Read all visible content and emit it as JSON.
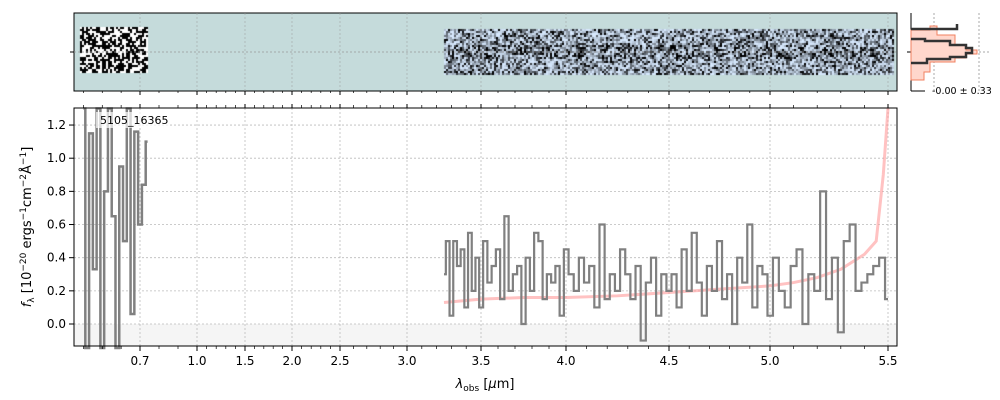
{
  "chart_data": {
    "type": "line",
    "object_label": "5105_16365",
    "xlabel": "λ_obs [μm]",
    "ylabel": "f_λ [10^-20 erg s^-1 cm^-2 Å^-1]",
    "xticks": [
      0.7,
      1.0,
      1.5,
      2.0,
      2.5,
      3.0,
      3.5,
      4.0,
      4.5,
      5.0,
      5.5
    ],
    "xtick_labels": [
      "0.7",
      "1.0",
      "1.5",
      "2.0",
      "2.5",
      "3.0",
      "3.5",
      "4.0",
      "4.5",
      "5.0",
      "5.5"
    ],
    "yticks": [
      0.0,
      0.2,
      0.4,
      0.6,
      0.8,
      1.0,
      1.2
    ],
    "ytick_labels": [
      "0.0",
      "0.2",
      "0.4",
      "0.6",
      "0.8",
      "1.0",
      "1.2"
    ],
    "ylim": [
      -0.13,
      1.3
    ],
    "xlim": [
      0.35,
      5.53
    ],
    "xscale": "nonlinear (resolution-scaled)",
    "grid": true,
    "colors": {
      "flux": "#808080",
      "model": "#ff9a9a",
      "image_bg": "#c5dbdb",
      "negative_shade": "#f5f5f5"
    },
    "series": [
      {
        "role": "flux-blue",
        "x": [
          0.4,
          0.42,
          0.44,
          0.46,
          0.48,
          0.5,
          0.52,
          0.54,
          0.56,
          0.58,
          0.6,
          0.62,
          0.64,
          0.66,
          0.68,
          0.7,
          0.72,
          0.74
        ],
        "y": [
          1.3,
          -0.2,
          1.15,
          0.33,
          1.3,
          -0.2,
          0.8,
          1.3,
          0.65,
          -0.2,
          0.95,
          0.5,
          1.3,
          0.06,
          1.16,
          0.6,
          0.84,
          1.1
        ]
      },
      {
        "role": "flux",
        "x_start": 3.25,
        "x_step": 0.025,
        "y": [
          0.3,
          0.5,
          0.05,
          0.5,
          0.35,
          0.45,
          0.1,
          0.55,
          0.2,
          0.4,
          0.1,
          0.5,
          0.25,
          0.35,
          0.45,
          0.15,
          0.65,
          0.2,
          0.3,
          0.35,
          0.0,
          0.4,
          0.2,
          0.55,
          0.5,
          0.15,
          0.3,
          0.25,
          0.35,
          0.05,
          0.45,
          0.3,
          0.2,
          0.4,
          0.25,
          0.35,
          0.1,
          0.6,
          0.15,
          0.3,
          0.2,
          0.45,
          0.3,
          0.15,
          0.35,
          -0.1,
          0.25,
          0.4,
          0.05,
          0.3,
          0.2,
          0.3,
          0.1,
          0.45,
          0.2,
          0.55,
          0.25,
          0.05,
          0.35,
          0.2,
          0.5,
          0.15,
          0.3,
          0.0,
          0.4,
          0.25,
          0.6,
          0.1,
          0.35,
          0.3,
          0.05,
          0.4,
          0.2,
          0.1,
          0.35,
          0.45,
          0.0,
          0.3,
          0.2,
          0.8,
          0.15,
          0.4,
          -0.05,
          0.5,
          0.6,
          0.2,
          0.25,
          0.3,
          0.35,
          0.4,
          0.15
        ]
      },
      {
        "role": "model",
        "x": [
          3.25,
          3.5,
          3.75,
          4.0,
          4.25,
          4.5,
          4.75,
          5.0,
          5.1,
          5.2,
          5.3,
          5.4,
          5.45,
          5.48,
          5.5
        ],
        "y": [
          0.13,
          0.15,
          0.16,
          0.16,
          0.17,
          0.19,
          0.21,
          0.23,
          0.25,
          0.28,
          0.33,
          0.42,
          0.5,
          0.9,
          1.3
        ]
      }
    ],
    "residual_panel": {
      "label": "-0.00 ± 0.33"
    }
  }
}
